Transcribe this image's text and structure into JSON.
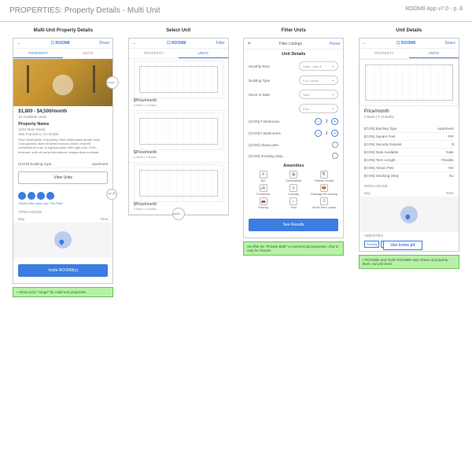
{
  "header": {
    "title": "PROPERTIES: Property Details - Multi Unit",
    "meta": "ROOM8 App v7.0 -  p. 8"
  },
  "columns": {
    "c1": {
      "title": "Multi-Unit Property Details"
    },
    "c2": {
      "title": "Select Unit"
    },
    "c3": {
      "title": "Filter Units"
    },
    "c4": {
      "title": "Unit Details"
    }
  },
  "topbar": {
    "brand": "☐ ROOM8",
    "back": "←",
    "share": "Share",
    "filter": "Filter",
    "close": "✕",
    "filterListings": "Filter Listings",
    "reset": "Reset"
  },
  "tabs": {
    "property": "PROPERTY",
    "units": "UNITS"
  },
  "badge": {
    "swipe": "swipe ←",
    "tap": "tap (B)"
  },
  "c1": {
    "price": "$1,800 - $4,500/month",
    "avail": "12 Available Units",
    "name": "Property Name",
    "addr1": "1234 Main Street",
    "addr2": "San Francisco, CA 94158",
    "desc": "Short description of property. Nam malesuada ornare dolor. Cras gravida, diam sit amet rhoncus ornare, erat elit consectetuer erat, id egestas pede nibh eget odio. Proin tincidunt, velit vel porta elementum, magna diam molestie.",
    "bt_label": "[ICON]  Building Type:",
    "bt_value": "Apartment",
    "viewUnits": "View Units",
    "othersLabel": "Others Who Also Like This Pad!",
    "openHouse": "OPEN HOUSE",
    "day": "Day",
    "time": "Time",
    "invite": "Invite ROOM8(s)"
  },
  "c2": {
    "u_price": "$Price/month",
    "u_meta": "# Beds  |  # Baths"
  },
  "c3": {
    "title": "Unit Details",
    "monthlyRent": "Monthly Rent",
    "rentPlaceholder": "Main - Max $",
    "buildingType": "Building Type",
    "btPlaceholder": "e.g. Condo",
    "moveIn": "Move In Date",
    "start": "Start",
    "end": "End",
    "bedrooms": "[ICON]  # Bedrooms",
    "bathrooms": "[ICON]  # Bathrooms",
    "pets": "[ICON]  Allows pets",
    "smoking": "[ICON]  Smoking okay",
    "bedVal": "2",
    "bathVal": "2",
    "amenTitle": "Amenities",
    "amen": [
      "A/C",
      "Dishwasher",
      "Fitness Center",
      "Furnished",
      "Laundry",
      "Package Re-ceiving",
      "Parking",
      "Pool",
      "Short Term Lease"
    ],
    "amenIcons": [
      "❄",
      "▦",
      "⛷",
      "🛋",
      "◎",
      "📦",
      "🚗",
      "〰",
      "⏱"
    ],
    "seeResults": "See Results"
  },
  "c4": {
    "price": "Price/month",
    "meta": "# Beds  |  # of Baths",
    "rows": [
      {
        "k": "[ICON]  Building Type",
        "v": "Apartment"
      },
      {
        "k": "[ICON]  Square Feet",
        "v": "###"
      },
      {
        "k": "[ICON]  Security Deposit",
        "v": "$"
      },
      {
        "k": "[ICON]  Date Available",
        "v": "Date"
      },
      {
        "k": "[ICON]  Term Length",
        "v": "Flexible"
      },
      {
        "k": "[ICON]  Allows Pets",
        "v": "Yes"
      },
      {
        "k": "[ICON]  Smoking Okay",
        "v": "No"
      }
    ],
    "openHouse": "OPEN HOUSE",
    "day": "Day",
    "time": "Time",
    "amenTitle": "AMENITIES",
    "amenChips": [
      "Dishwa",
      "Laundry",
      "Parking"
    ],
    "useIcons": "Use Icons p4"
  },
  "notes": {
    "n1": "• Show price \"range\" for multi-unit properties",
    "n3": "No filter for \"Private Bath\" in commercial properties, that is only for Rooms",
    "n4": "• ROOM8s and Invite ROOM8s only shows at property level, not unit level."
  }
}
